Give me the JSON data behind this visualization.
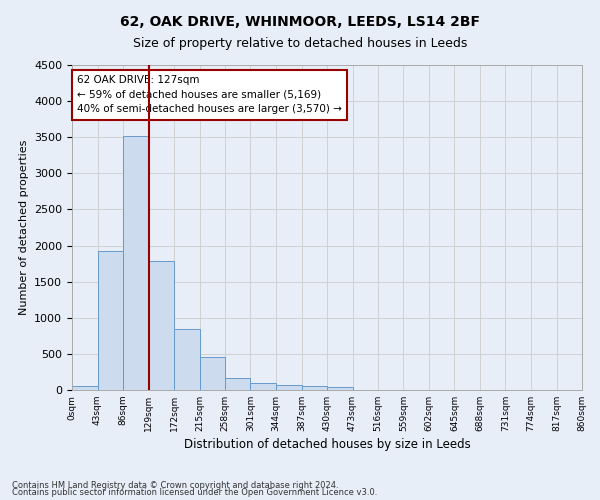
{
  "title": "62, OAK DRIVE, WHINMOOR, LEEDS, LS14 2BF",
  "subtitle": "Size of property relative to detached houses in Leeds",
  "xlabel": "Distribution of detached houses by size in Leeds",
  "ylabel": "Number of detached properties",
  "bin_labels": [
    "0sqm",
    "43sqm",
    "86sqm",
    "129sqm",
    "172sqm",
    "215sqm",
    "258sqm",
    "301sqm",
    "344sqm",
    "387sqm",
    "430sqm",
    "473sqm",
    "516sqm",
    "559sqm",
    "602sqm",
    "645sqm",
    "688sqm",
    "731sqm",
    "774sqm",
    "817sqm",
    "860sqm"
  ],
  "bar_values": [
    50,
    1920,
    3510,
    1790,
    840,
    460,
    165,
    100,
    75,
    55,
    40,
    0,
    0,
    0,
    0,
    0,
    0,
    0,
    0,
    0
  ],
  "bar_color": "#ccdcee",
  "bar_edge_color": "#6699cc",
  "grid_color": "#cccccc",
  "vline_x_bin": 3,
  "vline_color": "#990000",
  "annotation_line1": "62 OAK DRIVE: 127sqm",
  "annotation_line2": "← 59% of detached houses are smaller (5,169)",
  "annotation_line3": "40% of semi-detached houses are larger (3,570) →",
  "annotation_box_color": "#ffffff",
  "annotation_box_edge": "#990000",
  "ylim": [
    0,
    4500
  ],
  "yticks": [
    0,
    500,
    1000,
    1500,
    2000,
    2500,
    3000,
    3500,
    4000,
    4500
  ],
  "footer1": "Contains HM Land Registry data © Crown copyright and database right 2024.",
  "footer2": "Contains public sector information licensed under the Open Government Licence v3.0.",
  "bg_color": "#e8eef8",
  "title_fontsize": 10,
  "subtitle_fontsize": 9,
  "bin_width": 43
}
